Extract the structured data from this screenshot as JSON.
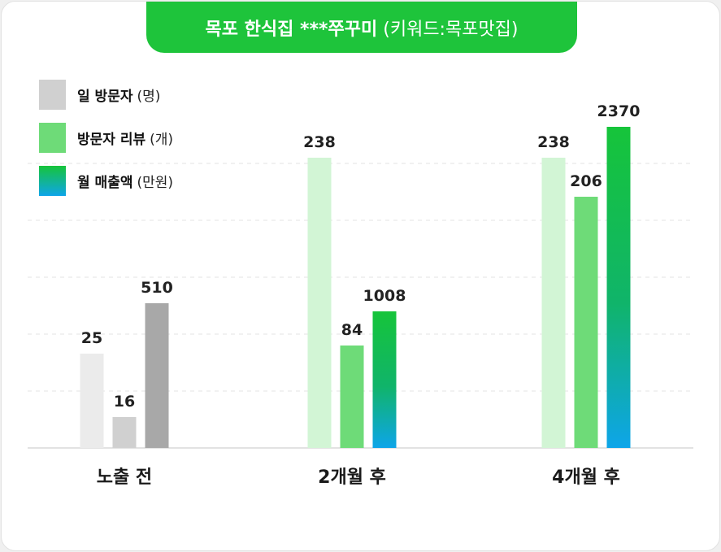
{
  "title": {
    "main": "목포 한식집 ***쭈꾸미",
    "keyword": "(키워드:목포맛집)"
  },
  "legend": [
    {
      "label": "일 방문자",
      "unit": "(명)"
    },
    {
      "label": "방문자 리뷰",
      "unit": "(개)"
    },
    {
      "label": "월 매출액",
      "unit": "(만원)"
    }
  ],
  "colors": {
    "title_bg": "#1ec43b",
    "group1": [
      "#ebebeb",
      "#d0d0d0",
      "#a8a8a8"
    ],
    "visitors": "#d2f5d5",
    "reviews": "#6edb78",
    "revenue_top": "#16c43a",
    "revenue_bottom": "#0ea5e9"
  },
  "chart_data": {
    "type": "bar",
    "categories": [
      "노출 전",
      "2개월 후",
      "4개월 후"
    ],
    "series": [
      {
        "name": "일 방문자 (명)",
        "values": [
          25,
          238,
          238
        ]
      },
      {
        "name": "방문자 리뷰 (개)",
        "values": [
          16,
          84,
          206
        ]
      },
      {
        "name": "월 매출액 (만원)",
        "values": [
          510,
          1008,
          2370
        ]
      }
    ],
    "legend_position": "top-left",
    "grid": true,
    "grid_style": "dashed horizontal"
  }
}
